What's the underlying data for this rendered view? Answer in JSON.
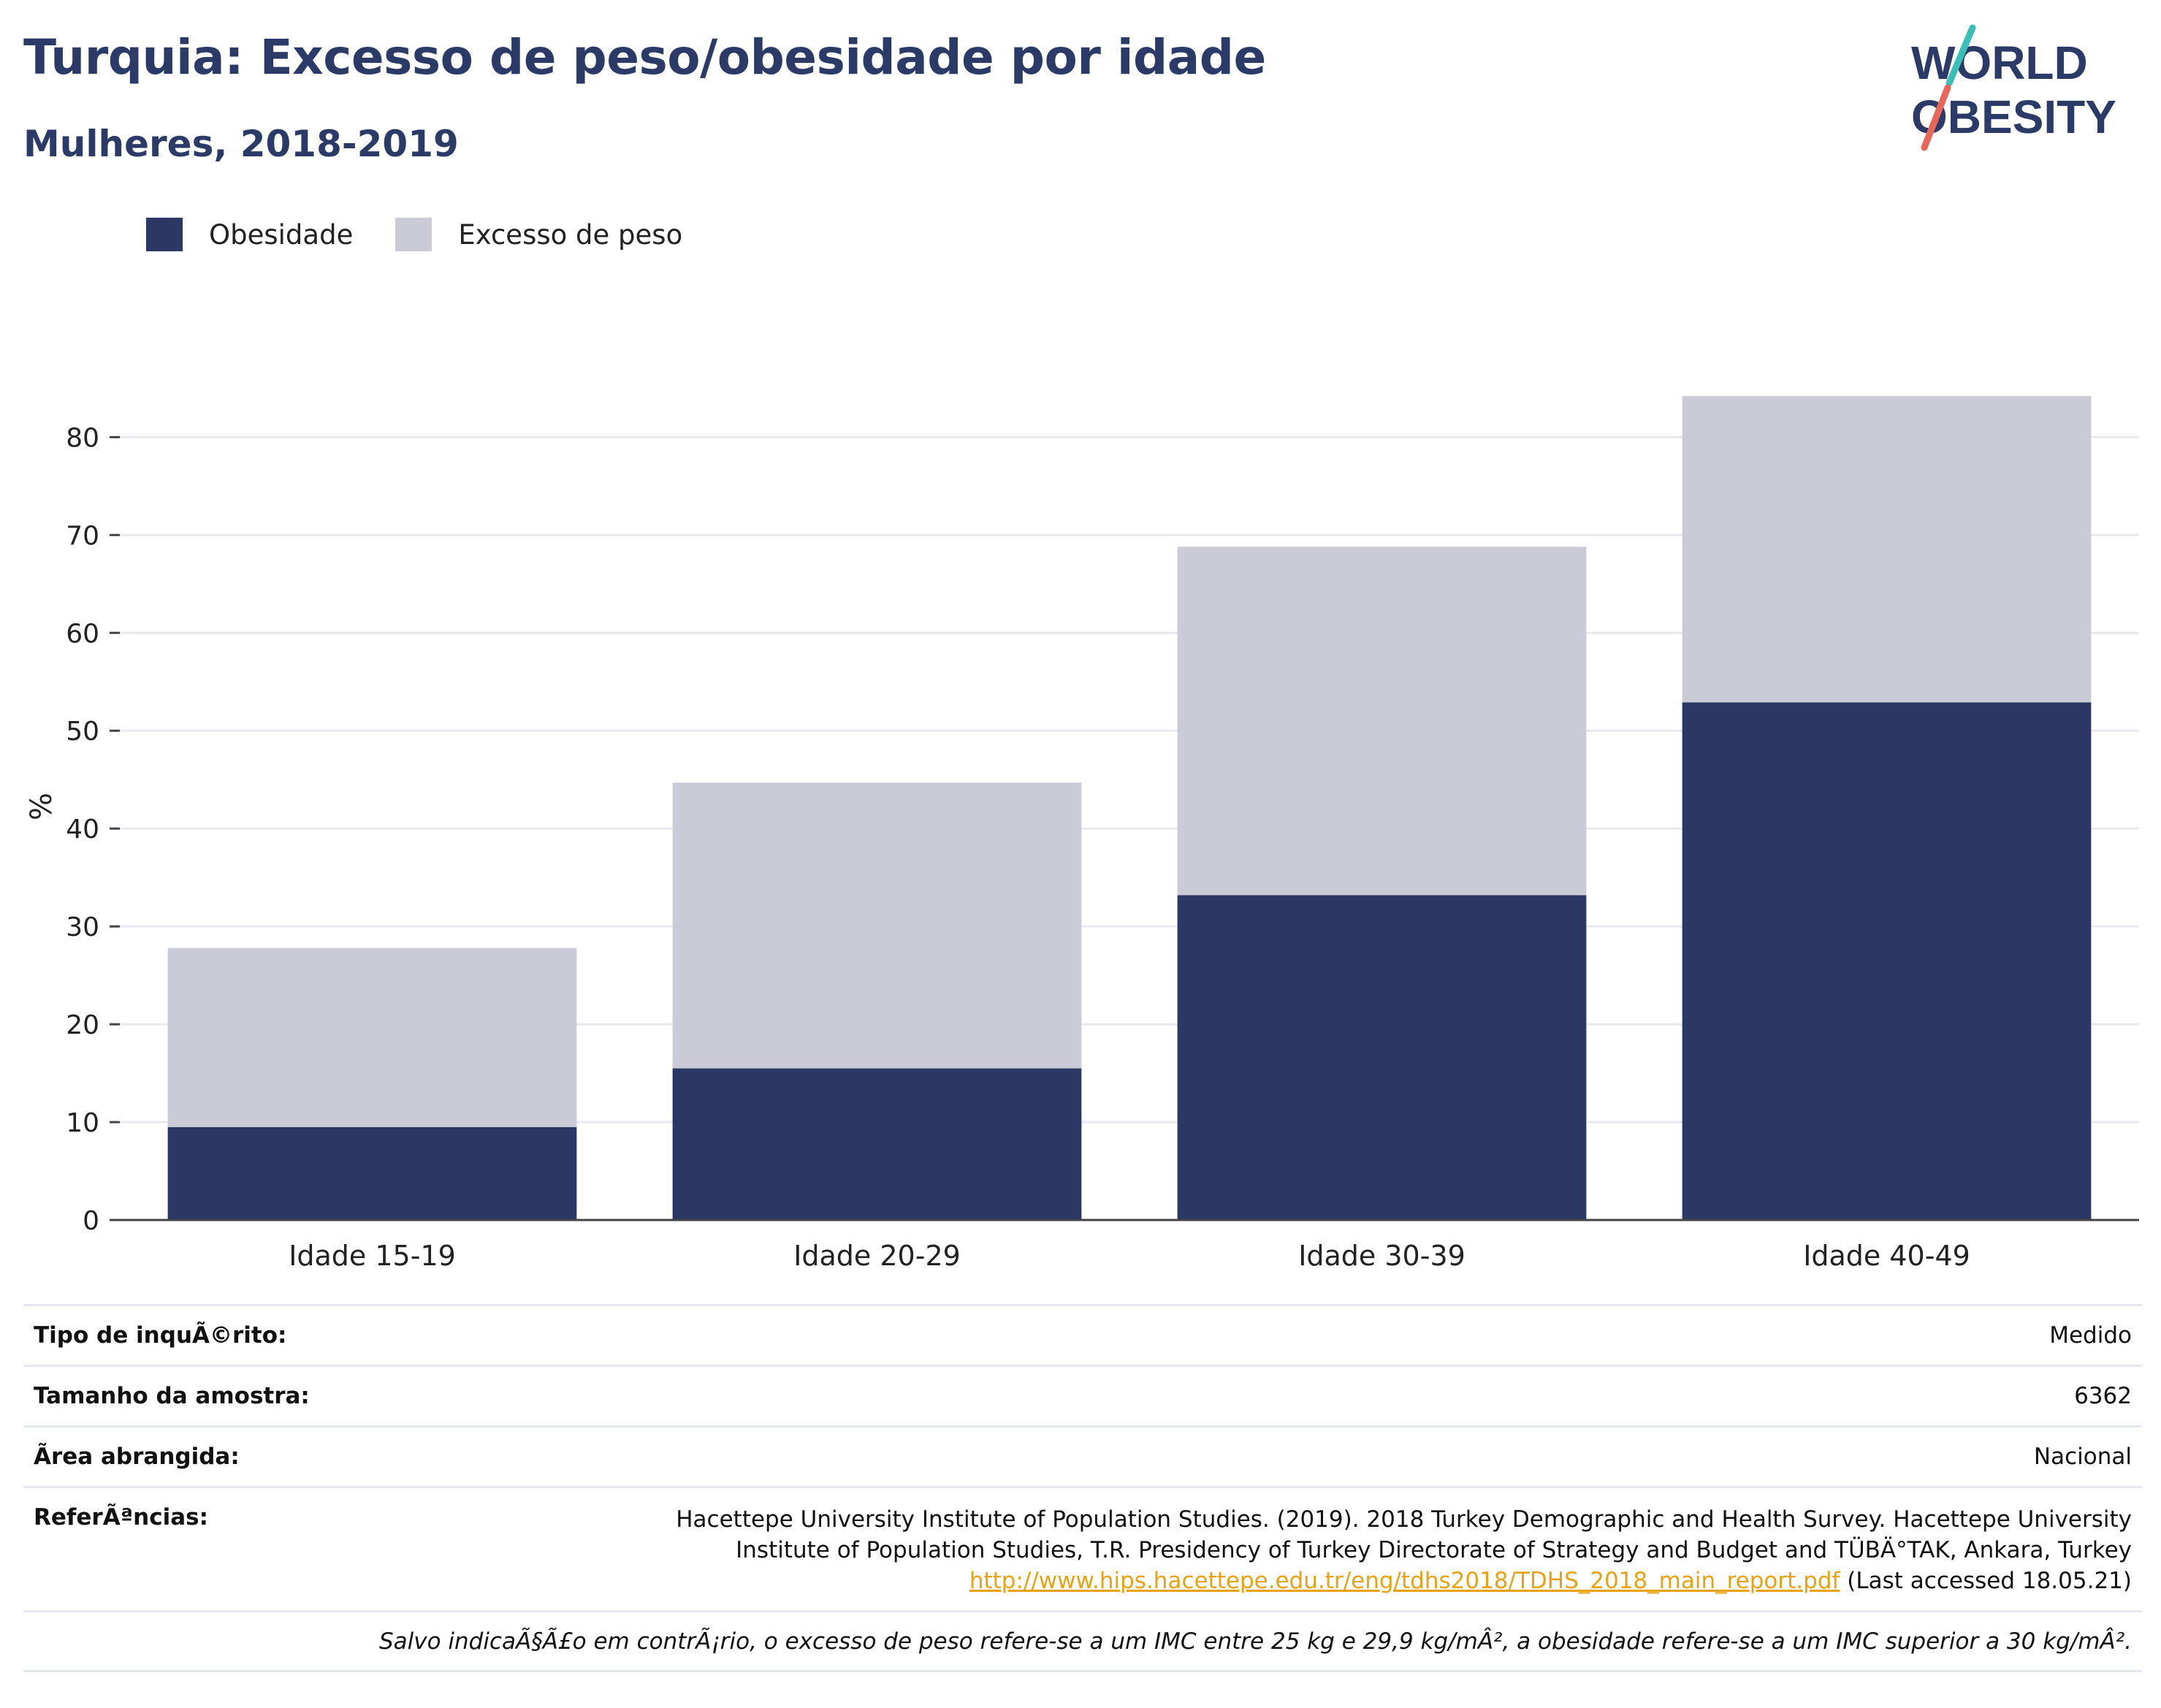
{
  "header": {
    "title": "Turquia: Excesso de peso/obesidade por idade",
    "subtitle": "Mulheres, 2018-2019"
  },
  "logo": {
    "line1": "WORLD",
    "line2": "OBESITY"
  },
  "legend": {
    "items": [
      {
        "label": "Obesidade",
        "color": "#2b3764"
      },
      {
        "label": "Excesso de peso",
        "color": "#cacbd6"
      }
    ]
  },
  "chart_data": {
    "type": "bar",
    "stacked": true,
    "categories": [
      "Idade 15-19",
      "Idade 20-29",
      "Idade 30-39",
      "Idade 40-49"
    ],
    "series": [
      {
        "name": "Obesidade",
        "values": [
          9.5,
          15.5,
          33.2,
          52.9
        ],
        "color": "#2b3764"
      },
      {
        "name": "Excesso de peso",
        "values": [
          18.3,
          29.2,
          35.6,
          31.3
        ],
        "color": "#cacbd6"
      }
    ],
    "ylabel": "%",
    "ylim": [
      0,
      86
    ],
    "yticks": [
      0,
      10,
      20,
      30,
      40,
      50,
      60,
      70,
      80
    ],
    "grid": true,
    "legend_position": "top-left"
  },
  "info": {
    "survey_type": {
      "label": "Tipo de inquÃ©rito:",
      "value": "Medido"
    },
    "sample_size": {
      "label": "Tamanho da amostra:",
      "value": "6362"
    },
    "area": {
      "label": "Ãrea abrangida:",
      "value": "Nacional"
    },
    "references": {
      "label": "ReferÃªncias:",
      "line1": "Hacettepe University Institute of Population Studies. (2019). 2018 Turkey Demographic and Health Survey. Hacettepe University",
      "line2": "Institute of Population Studies, T.R. Presidency of Turkey Directorate of Strategy and Budget and TÜBÄ°TAK, Ankara, Turkey",
      "link": "http://www.hips.hacettepe.edu.tr/eng/tdhs2018/TDHS_2018_main_report.pdf",
      "accessed": " (Last accessed 18.05.21)"
    },
    "note": "Salvo indicaÃ§Ã£o em contrÃ¡rio, o excesso de peso refere-se a um IMC entre 25 kg e 29,9 kg/mÂ², a obesidade refere-se a um IMC superior a 30 kg/mÂ²."
  }
}
